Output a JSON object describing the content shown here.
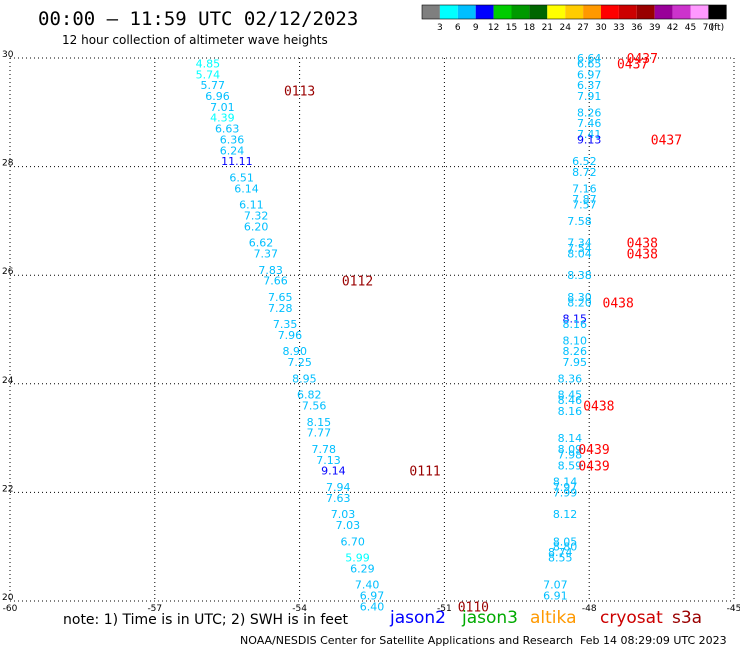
{
  "header": {
    "title": "00:00 – 11:59 UTC 02/12/2023",
    "subtitle": "12 hour collection of altimeter wave heights"
  },
  "colorbar": {
    "labels": [
      "3",
      "6",
      "9",
      "12",
      "15",
      "18",
      "21",
      "24",
      "27",
      "30",
      "33",
      "36",
      "39",
      "42",
      "45",
      "70",
      "(ft)"
    ],
    "colors": [
      "#7f7f7f",
      "#00ffff",
      "#00bfff",
      "#0000ff",
      "#00cc00",
      "#009900",
      "#006600",
      "#ffff00",
      "#ffcc00",
      "#ff9900",
      "#ff0000",
      "#cc0000",
      "#990000",
      "#990099",
      "#cc33cc",
      "#ff99ff",
      "#000000"
    ]
  },
  "footer": {
    "note": "note: 1) Time is in UTC; 2) SWH is in feet",
    "credit": "NOAA/NESDIS Center for Satellite Applications and Research",
    "timestamp": "Feb 14 08:29:09 UTC 2023"
  },
  "satellites": [
    {
      "name": "jason2",
      "color": "#0000ff"
    },
    {
      "name": "jason3",
      "color": "#00aa00"
    },
    {
      "name": "altika",
      "color": "#ff9900"
    },
    {
      "name": "cryosat",
      "color": "#cc0000"
    },
    {
      "name": "s3a",
      "color": "#990000"
    }
  ],
  "chart_data": {
    "type": "scatter",
    "xlim": [
      -60,
      -45
    ],
    "ylim": [
      20,
      30
    ],
    "xticks": [
      "-60",
      "-57",
      "-54",
      "-51",
      "-48",
      "-45"
    ],
    "yticks": [
      "20",
      "22",
      "24",
      "26",
      "28",
      "30"
    ],
    "grid": true,
    "track_left": {
      "points": [
        {
          "x": -55.9,
          "y": 29.9,
          "v": "4.85",
          "c": "#00ffff"
        },
        {
          "x": -55.9,
          "y": 29.7,
          "v": "5.74",
          "c": "#00ffff"
        },
        {
          "x": -55.8,
          "y": 29.5,
          "v": "5.77",
          "c": "#00bfff"
        },
        {
          "x": -55.7,
          "y": 29.3,
          "v": "6.96",
          "c": "#00bfff"
        },
        {
          "x": -55.6,
          "y": 29.1,
          "v": "7.01",
          "c": "#00bfff"
        },
        {
          "x": -55.6,
          "y": 28.9,
          "v": "4.39",
          "c": "#00ffff"
        },
        {
          "x": -55.5,
          "y": 28.7,
          "v": "6.63",
          "c": "#00bfff"
        },
        {
          "x": -55.4,
          "y": 28.5,
          "v": "6.36",
          "c": "#00bfff"
        },
        {
          "x": -55.4,
          "y": 28.3,
          "v": "6.24",
          "c": "#00bfff"
        },
        {
          "x": -55.3,
          "y": 28.1,
          "v": "11.11",
          "c": "#0000ff"
        },
        {
          "x": -55.2,
          "y": 27.8,
          "v": "6.51",
          "c": "#00bfff"
        },
        {
          "x": -55.1,
          "y": 27.6,
          "v": "6.14",
          "c": "#00bfff"
        },
        {
          "x": -55.0,
          "y": 27.3,
          "v": "6.11",
          "c": "#00bfff"
        },
        {
          "x": -54.9,
          "y": 27.1,
          "v": "7.32",
          "c": "#00bfff"
        },
        {
          "x": -54.9,
          "y": 26.9,
          "v": "6.20",
          "c": "#00bfff"
        },
        {
          "x": -54.8,
          "y": 26.6,
          "v": "6.62",
          "c": "#00bfff"
        },
        {
          "x": -54.7,
          "y": 26.4,
          "v": "7.37",
          "c": "#00bfff"
        },
        {
          "x": -54.6,
          "y": 26.1,
          "v": "7.83",
          "c": "#00bfff"
        },
        {
          "x": -54.5,
          "y": 25.9,
          "v": "7.66",
          "c": "#00bfff"
        },
        {
          "x": -54.4,
          "y": 25.6,
          "v": "7.65",
          "c": "#00bfff"
        },
        {
          "x": -54.4,
          "y": 25.4,
          "v": "7.28",
          "c": "#00bfff"
        },
        {
          "x": -54.3,
          "y": 25.1,
          "v": "7.35",
          "c": "#00bfff"
        },
        {
          "x": -54.2,
          "y": 24.9,
          "v": "7.96",
          "c": "#00bfff"
        },
        {
          "x": -54.1,
          "y": 24.6,
          "v": "8.90",
          "c": "#00bfff"
        },
        {
          "x": -54.0,
          "y": 24.4,
          "v": "7.25",
          "c": "#00bfff"
        },
        {
          "x": -53.9,
          "y": 24.1,
          "v": "8.95",
          "c": "#00bfff"
        },
        {
          "x": -53.8,
          "y": 23.8,
          "v": "6.82",
          "c": "#00bfff"
        },
        {
          "x": -53.7,
          "y": 23.6,
          "v": "7.56",
          "c": "#00bfff"
        },
        {
          "x": -53.6,
          "y": 23.3,
          "v": "8.15",
          "c": "#00bfff"
        },
        {
          "x": -53.6,
          "y": 23.1,
          "v": "7.77",
          "c": "#00bfff"
        },
        {
          "x": -53.5,
          "y": 22.8,
          "v": "7.78",
          "c": "#00bfff"
        },
        {
          "x": -53.4,
          "y": 22.6,
          "v": "7.13",
          "c": "#00bfff"
        },
        {
          "x": -53.3,
          "y": 22.4,
          "v": "9.14",
          "c": "#0000ff"
        },
        {
          "x": -53.2,
          "y": 22.1,
          "v": "7.94",
          "c": "#00bfff"
        },
        {
          "x": -53.2,
          "y": 21.9,
          "v": "7.63",
          "c": "#00bfff"
        },
        {
          "x": -53.1,
          "y": 21.6,
          "v": "7.03",
          "c": "#00bfff"
        },
        {
          "x": -53.0,
          "y": 21.4,
          "v": "7.03",
          "c": "#00bfff"
        },
        {
          "x": -52.9,
          "y": 21.1,
          "v": "6.70",
          "c": "#00bfff"
        },
        {
          "x": -52.8,
          "y": 20.8,
          "v": "5.99",
          "c": "#00ffff"
        },
        {
          "x": -52.7,
          "y": 20.6,
          "v": "6.29",
          "c": "#00bfff"
        },
        {
          "x": -52.6,
          "y": 20.3,
          "v": "7.40",
          "c": "#00bfff"
        },
        {
          "x": -52.5,
          "y": 20.1,
          "v": "6.97",
          "c": "#00bfff"
        },
        {
          "x": -52.5,
          "y": 19.9,
          "v": "6.40",
          "c": "#00bfff"
        }
      ],
      "time_labels": [
        {
          "x": -54.0,
          "y": 29.4,
          "t": "0113",
          "c": "#990000"
        },
        {
          "x": -52.8,
          "y": 25.9,
          "t": "0112",
          "c": "#990000"
        },
        {
          "x": -51.4,
          "y": 22.4,
          "t": "0111",
          "c": "#990000"
        },
        {
          "x": -50.4,
          "y": 19.9,
          "t": "0110",
          "c": "#990000"
        }
      ]
    },
    "track_right": {
      "points": [
        {
          "x": -48.0,
          "y": 30.0,
          "v": "6.64",
          "c": "#00bfff"
        },
        {
          "x": -48.0,
          "y": 29.9,
          "v": "6.65",
          "c": "#00bfff"
        },
        {
          "x": -48.0,
          "y": 29.7,
          "v": "6.97",
          "c": "#00bfff"
        },
        {
          "x": -48.0,
          "y": 29.5,
          "v": "6.37",
          "c": "#00bfff"
        },
        {
          "x": -48.0,
          "y": 29.3,
          "v": "7.91",
          "c": "#00bfff"
        },
        {
          "x": -48.0,
          "y": 29.0,
          "v": "8.26",
          "c": "#00bfff"
        },
        {
          "x": -48.0,
          "y": 28.8,
          "v": "7.46",
          "c": "#00bfff"
        },
        {
          "x": -48.0,
          "y": 28.6,
          "v": "7.41",
          "c": "#00bfff"
        },
        {
          "x": -48.0,
          "y": 28.5,
          "v": "9.13",
          "c": "#0000ff"
        },
        {
          "x": -48.1,
          "y": 28.1,
          "v": "6.52",
          "c": "#00bfff"
        },
        {
          "x": -48.1,
          "y": 27.9,
          "v": "8.72",
          "c": "#00bfff"
        },
        {
          "x": -48.1,
          "y": 27.6,
          "v": "7.16",
          "c": "#00bfff"
        },
        {
          "x": -48.1,
          "y": 27.4,
          "v": "7.87",
          "c": "#00bfff"
        },
        {
          "x": -48.1,
          "y": 27.3,
          "v": "7.57",
          "c": "#00bfff"
        },
        {
          "x": -48.2,
          "y": 27.0,
          "v": "7.58",
          "c": "#00bfff"
        },
        {
          "x": -48.2,
          "y": 26.6,
          "v": "7.34",
          "c": "#00bfff"
        },
        {
          "x": -48.2,
          "y": 26.5,
          "v": "7.54",
          "c": "#00bfff"
        },
        {
          "x": -48.2,
          "y": 26.4,
          "v": "8.04",
          "c": "#00bfff"
        },
        {
          "x": -48.2,
          "y": 26.0,
          "v": "8.38",
          "c": "#00bfff"
        },
        {
          "x": -48.2,
          "y": 25.6,
          "v": "8.30",
          "c": "#00bfff"
        },
        {
          "x": -48.2,
          "y": 25.5,
          "v": "8.20",
          "c": "#00bfff"
        },
        {
          "x": -48.3,
          "y": 25.2,
          "v": "8.15",
          "c": "#0000ff"
        },
        {
          "x": -48.3,
          "y": 25.1,
          "v": "8.16",
          "c": "#00bfff"
        },
        {
          "x": -48.3,
          "y": 24.8,
          "v": "8.10",
          "c": "#00bfff"
        },
        {
          "x": -48.3,
          "y": 24.6,
          "v": "8.26",
          "c": "#00bfff"
        },
        {
          "x": -48.3,
          "y": 24.4,
          "v": "7.95",
          "c": "#00bfff"
        },
        {
          "x": -48.4,
          "y": 24.1,
          "v": "8.36",
          "c": "#00bfff"
        },
        {
          "x": -48.4,
          "y": 23.8,
          "v": "8.45",
          "c": "#00bfff"
        },
        {
          "x": -48.4,
          "y": 23.7,
          "v": "8.46",
          "c": "#00bfff"
        },
        {
          "x": -48.4,
          "y": 23.5,
          "v": "8.16",
          "c": "#00bfff"
        },
        {
          "x": -48.4,
          "y": 23.0,
          "v": "8.14",
          "c": "#00bfff"
        },
        {
          "x": -48.4,
          "y": 22.8,
          "v": "8.09",
          "c": "#00bfff"
        },
        {
          "x": -48.4,
          "y": 22.7,
          "v": "7.98",
          "c": "#00bfff"
        },
        {
          "x": -48.4,
          "y": 22.5,
          "v": "8.59",
          "c": "#00bfff"
        },
        {
          "x": -48.5,
          "y": 22.2,
          "v": "8.14",
          "c": "#00bfff"
        },
        {
          "x": -48.5,
          "y": 22.1,
          "v": "7.97",
          "c": "#00bfff"
        },
        {
          "x": -48.5,
          "y": 22.0,
          "v": "7.99",
          "c": "#00bfff"
        },
        {
          "x": -48.5,
          "y": 21.6,
          "v": "8.12",
          "c": "#00bfff"
        },
        {
          "x": -48.5,
          "y": 21.1,
          "v": "8.05",
          "c": "#00bfff"
        },
        {
          "x": -48.5,
          "y": 21.0,
          "v": "8.80",
          "c": "#00bfff"
        },
        {
          "x": -48.6,
          "y": 20.9,
          "v": "8.74",
          "c": "#00bfff"
        },
        {
          "x": -48.6,
          "y": 20.8,
          "v": "8.55",
          "c": "#00bfff"
        },
        {
          "x": -48.7,
          "y": 20.3,
          "v": "7.07",
          "c": "#00bfff"
        },
        {
          "x": -48.7,
          "y": 20.1,
          "v": "6.91",
          "c": "#00bfff"
        }
      ],
      "time_labels": [
        {
          "x": -46.9,
          "y": 30.0,
          "t": "0437",
          "c": "#ff0000"
        },
        {
          "x": -47.1,
          "y": 29.9,
          "t": "0437",
          "c": "#ff0000"
        },
        {
          "x": -46.4,
          "y": 28.5,
          "t": "0437",
          "c": "#ff0000"
        },
        {
          "x": -46.9,
          "y": 26.6,
          "t": "0438",
          "c": "#ff0000"
        },
        {
          "x": -46.9,
          "y": 26.4,
          "t": "0438",
          "c": "#ff0000"
        },
        {
          "x": -47.4,
          "y": 25.5,
          "t": "0438",
          "c": "#ff0000"
        },
        {
          "x": -47.8,
          "y": 23.6,
          "t": "0438",
          "c": "#ff0000"
        },
        {
          "x": -47.9,
          "y": 22.8,
          "t": "0439",
          "c": "#ff0000"
        },
        {
          "x": -47.9,
          "y": 22.5,
          "t": "0439",
          "c": "#ff0000"
        }
      ]
    }
  }
}
